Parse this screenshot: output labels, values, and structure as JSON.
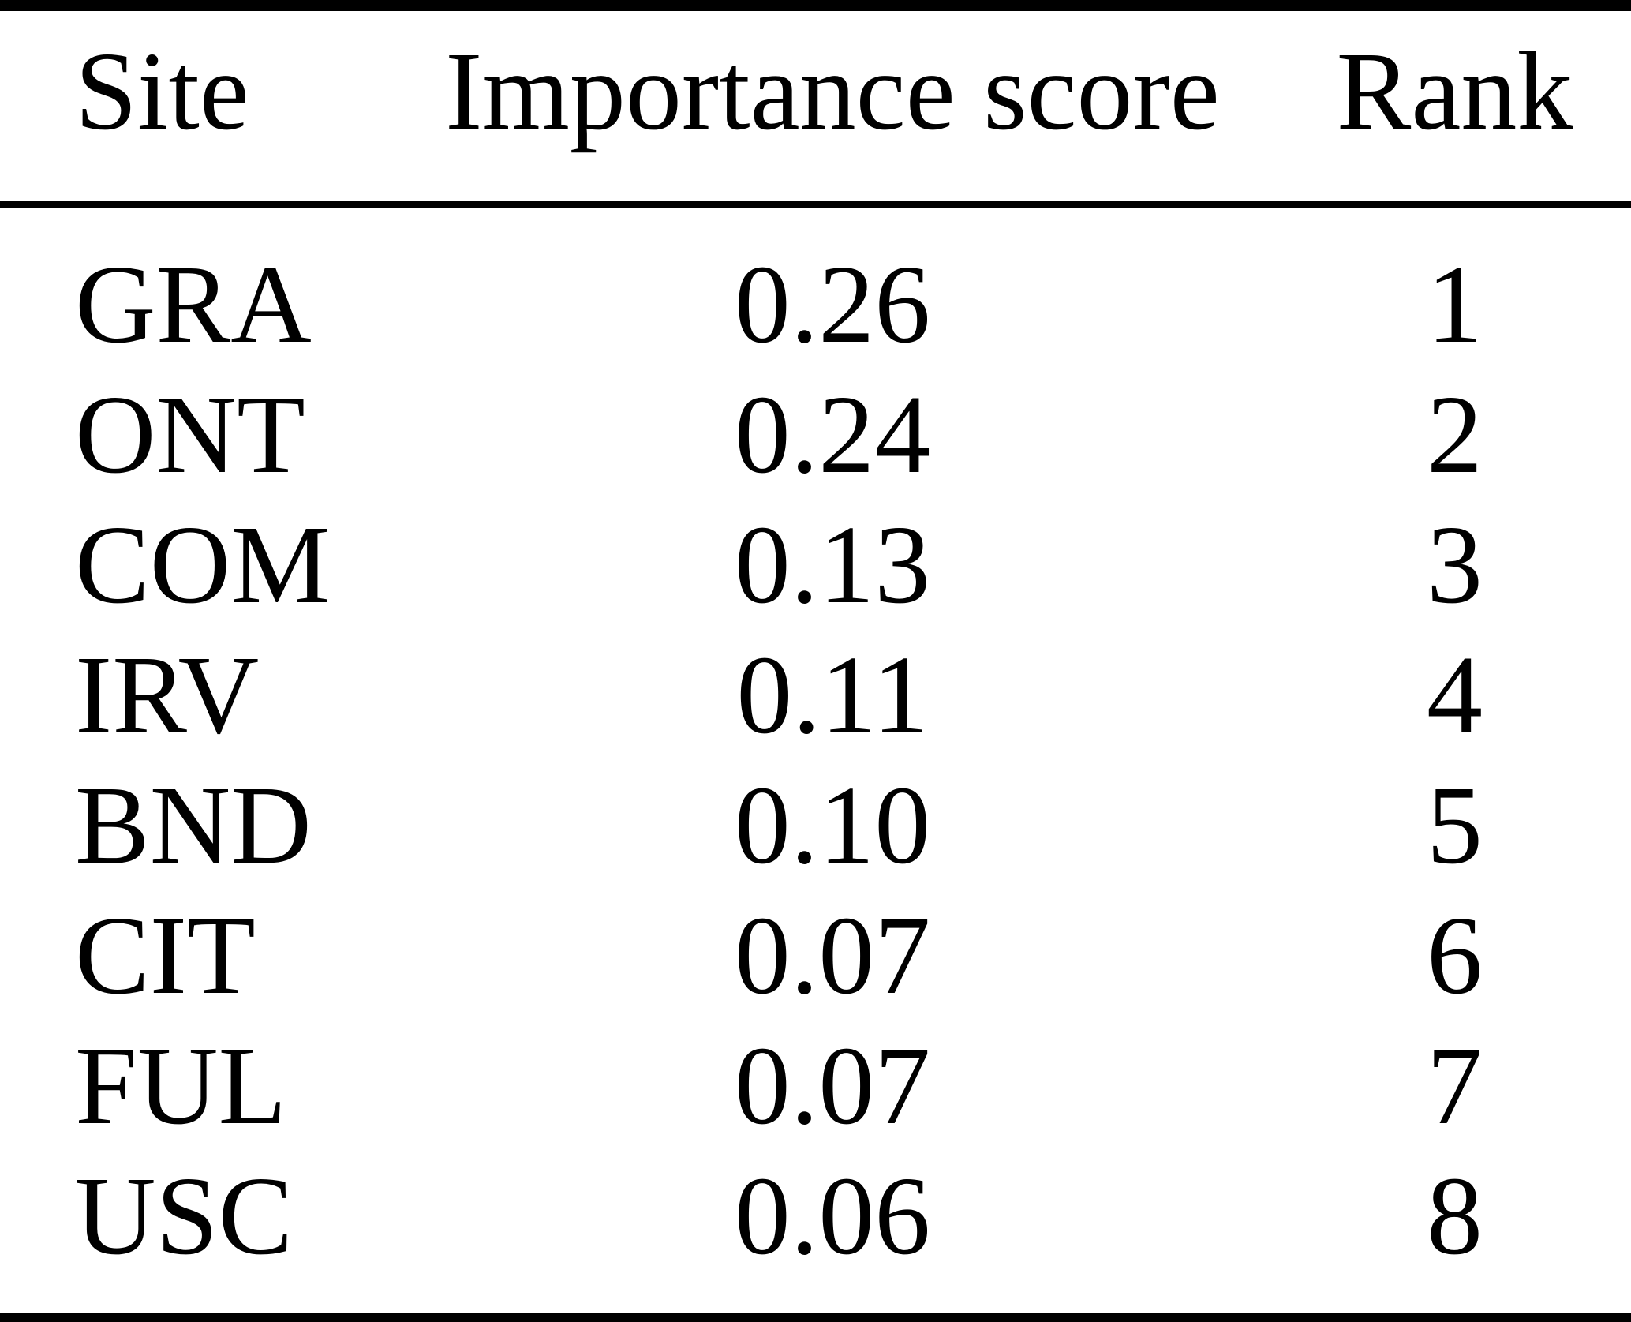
{
  "figure": {
    "type": "table",
    "colors": {
      "background": "#ffffff",
      "text": "#000000",
      "rule": "#000000"
    },
    "headers": [
      "Site",
      "Importance score",
      "Rank"
    ],
    "rows": [
      {
        "site": "GRA",
        "score": "0.26",
        "rank": "1"
      },
      {
        "site": "ONT",
        "score": "0.24",
        "rank": "2"
      },
      {
        "site": "COM",
        "score": "0.13",
        "rank": "3"
      },
      {
        "site": "IRV",
        "score": "0.11",
        "rank": "4"
      },
      {
        "site": "BND",
        "score": "0.10",
        "rank": "5"
      },
      {
        "site": "CIT",
        "score": "0.07",
        "rank": "6"
      },
      {
        "site": "FUL",
        "score": "0.07",
        "rank": "7"
      },
      {
        "site": "USC",
        "score": "0.06",
        "rank": "8"
      }
    ]
  }
}
